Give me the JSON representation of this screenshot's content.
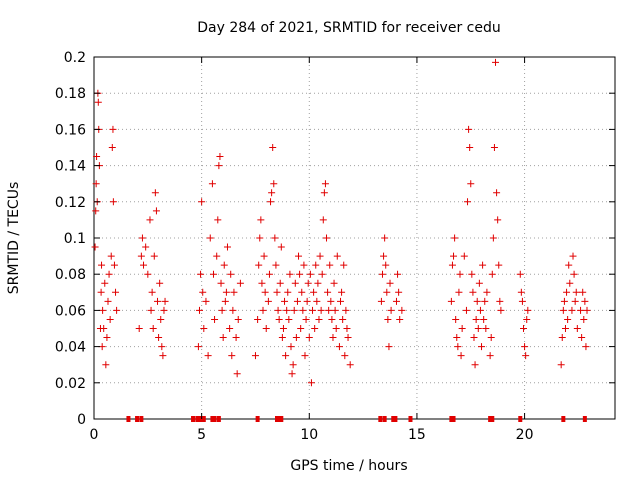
{
  "chart_data": {
    "type": "scatter",
    "title": "Day 284 of 2021, SRMTID for receiver cedu",
    "xlabel": "GPS time / hours",
    "ylabel": "SRMTID / TECUs",
    "xlim": [
      0,
      24.2
    ],
    "ylim": [
      0,
      0.2
    ],
    "xticks": [
      0,
      5,
      10,
      15,
      20
    ],
    "yticks": [
      0,
      0.02,
      0.04,
      0.06,
      0.08,
      0.1,
      0.12,
      0.14,
      0.16,
      0.18,
      0.2
    ],
    "grid": true,
    "marker": "+",
    "color": "#e00000",
    "series": [
      {
        "name": "SRMTID",
        "points": [
          [
            0.05,
            0.095
          ],
          [
            0.08,
            0.115
          ],
          [
            0.1,
            0.13
          ],
          [
            0.12,
            0.145
          ],
          [
            0.15,
            0.12
          ],
          [
            0.18,
            0.18
          ],
          [
            0.2,
            0.175
          ],
          [
            0.22,
            0.16
          ],
          [
            0.25,
            0.14
          ],
          [
            0.3,
            0.05
          ],
          [
            0.33,
            0.07
          ],
          [
            0.35,
            0.085
          ],
          [
            0.38,
            0.04
          ],
          [
            0.4,
            0.06
          ],
          [
            0.45,
            0.05
          ],
          [
            0.5,
            0.075
          ],
          [
            0.55,
            0.03
          ],
          [
            0.6,
            0.045
          ],
          [
            0.65,
            0.065
          ],
          [
            0.7,
            0.08
          ],
          [
            0.75,
            0.055
          ],
          [
            0.8,
            0.09
          ],
          [
            0.85,
            0.15
          ],
          [
            0.88,
            0.16
          ],
          [
            0.9,
            0.12
          ],
          [
            0.95,
            0.085
          ],
          [
            1.0,
            0.07
          ],
          [
            1.05,
            0.06
          ],
          [
            2.1,
            0.05
          ],
          [
            2.2,
            0.09
          ],
          [
            2.25,
            0.1
          ],
          [
            2.3,
            0.085
          ],
          [
            2.4,
            0.095
          ],
          [
            2.5,
            0.08
          ],
          [
            2.6,
            0.11
          ],
          [
            2.65,
            0.06
          ],
          [
            2.7,
            0.07
          ],
          [
            2.75,
            0.05
          ],
          [
            2.8,
            0.09
          ],
          [
            2.85,
            0.125
          ],
          [
            2.9,
            0.115
          ],
          [
            2.95,
            0.065
          ],
          [
            3.0,
            0.045
          ],
          [
            3.05,
            0.075
          ],
          [
            3.1,
            0.055
          ],
          [
            3.15,
            0.04
          ],
          [
            3.2,
            0.035
          ],
          [
            3.25,
            0.06
          ],
          [
            3.3,
            0.065
          ],
          [
            4.85,
            0.04
          ],
          [
            4.9,
            0.06
          ],
          [
            4.95,
            0.08
          ],
          [
            5.0,
            0.12
          ],
          [
            5.05,
            0.07
          ],
          [
            5.1,
            0.05
          ],
          [
            5.2,
            0.065
          ],
          [
            5.3,
            0.035
          ],
          [
            5.4,
            0.1
          ],
          [
            5.5,
            0.13
          ],
          [
            5.55,
            0.08
          ],
          [
            5.6,
            0.055
          ],
          [
            5.7,
            0.09
          ],
          [
            5.75,
            0.11
          ],
          [
            5.8,
            0.14
          ],
          [
            5.85,
            0.145
          ],
          [
            5.9,
            0.075
          ],
          [
            5.95,
            0.06
          ],
          [
            6.0,
            0.045
          ],
          [
            6.05,
            0.085
          ],
          [
            6.1,
            0.065
          ],
          [
            6.15,
            0.07
          ],
          [
            6.2,
            0.095
          ],
          [
            6.3,
            0.05
          ],
          [
            6.35,
            0.08
          ],
          [
            6.4,
            0.035
          ],
          [
            6.45,
            0.06
          ],
          [
            6.5,
            0.07
          ],
          [
            6.6,
            0.045
          ],
          [
            6.65,
            0.025
          ],
          [
            6.7,
            0.055
          ],
          [
            6.8,
            0.075
          ],
          [
            7.5,
            0.035
          ],
          [
            7.6,
            0.055
          ],
          [
            7.65,
            0.085
          ],
          [
            7.7,
            0.1
          ],
          [
            7.75,
            0.11
          ],
          [
            7.8,
            0.075
          ],
          [
            7.85,
            0.06
          ],
          [
            7.9,
            0.09
          ],
          [
            7.95,
            0.07
          ],
          [
            8.0,
            0.05
          ],
          [
            8.1,
            0.065
          ],
          [
            8.15,
            0.08
          ],
          [
            8.2,
            0.12
          ],
          [
            8.25,
            0.125
          ],
          [
            8.3,
            0.15
          ],
          [
            8.35,
            0.13
          ],
          [
            8.4,
            0.1
          ],
          [
            8.45,
            0.085
          ],
          [
            8.5,
            0.07
          ],
          [
            8.55,
            0.06
          ],
          [
            8.6,
            0.055
          ],
          [
            8.65,
            0.075
          ],
          [
            8.7,
            0.095
          ],
          [
            8.75,
            0.045
          ],
          [
            8.8,
            0.05
          ],
          [
            8.85,
            0.065
          ],
          [
            8.9,
            0.035
          ],
          [
            8.95,
            0.06
          ],
          [
            9.0,
            0.07
          ],
          [
            9.05,
            0.055
          ],
          [
            9.1,
            0.08
          ],
          [
            9.15,
            0.04
          ],
          [
            9.2,
            0.025
          ],
          [
            9.25,
            0.03
          ],
          [
            9.3,
            0.06
          ],
          [
            9.35,
            0.075
          ],
          [
            9.4,
            0.045
          ],
          [
            9.45,
            0.065
          ],
          [
            9.5,
            0.09
          ],
          [
            9.55,
            0.08
          ],
          [
            9.6,
            0.05
          ],
          [
            9.65,
            0.07
          ],
          [
            9.7,
            0.06
          ],
          [
            9.75,
            0.085
          ],
          [
            9.8,
            0.035
          ],
          [
            9.85,
            0.055
          ],
          [
            9.9,
            0.065
          ],
          [
            9.95,
            0.075
          ],
          [
            10.0,
            0.045
          ],
          [
            10.05,
            0.08
          ],
          [
            10.1,
            0.02
          ],
          [
            10.15,
            0.06
          ],
          [
            10.2,
            0.07
          ],
          [
            10.25,
            0.05
          ],
          [
            10.3,
            0.085
          ],
          [
            10.35,
            0.065
          ],
          [
            10.4,
            0.075
          ],
          [
            10.45,
            0.055
          ],
          [
            10.5,
            0.09
          ],
          [
            10.55,
            0.06
          ],
          [
            10.6,
            0.08
          ],
          [
            10.65,
            0.11
          ],
          [
            10.7,
            0.125
          ],
          [
            10.75,
            0.13
          ],
          [
            10.8,
            0.1
          ],
          [
            10.85,
            0.07
          ],
          [
            10.9,
            0.06
          ],
          [
            10.95,
            0.085
          ],
          [
            11.0,
            0.065
          ],
          [
            11.05,
            0.055
          ],
          [
            11.1,
            0.045
          ],
          [
            11.15,
            0.075
          ],
          [
            11.2,
            0.06
          ],
          [
            11.25,
            0.05
          ],
          [
            11.3,
            0.09
          ],
          [
            11.4,
            0.04
          ],
          [
            11.45,
            0.065
          ],
          [
            11.5,
            0.07
          ],
          [
            11.55,
            0.055
          ],
          [
            11.6,
            0.085
          ],
          [
            11.65,
            0.035
          ],
          [
            11.7,
            0.06
          ],
          [
            11.75,
            0.05
          ],
          [
            11.8,
            0.045
          ],
          [
            11.9,
            0.03
          ],
          [
            13.35,
            0.065
          ],
          [
            13.4,
            0.08
          ],
          [
            13.45,
            0.09
          ],
          [
            13.5,
            0.1
          ],
          [
            13.55,
            0.085
          ],
          [
            13.6,
            0.07
          ],
          [
            13.65,
            0.055
          ],
          [
            13.7,
            0.04
          ],
          [
            13.75,
            0.075
          ],
          [
            13.8,
            0.06
          ],
          [
            14.05,
            0.065
          ],
          [
            14.1,
            0.08
          ],
          [
            14.15,
            0.07
          ],
          [
            14.2,
            0.055
          ],
          [
            14.3,
            0.06
          ],
          [
            16.6,
            0.065
          ],
          [
            16.65,
            0.085
          ],
          [
            16.7,
            0.09
          ],
          [
            16.75,
            0.1
          ],
          [
            16.8,
            0.055
          ],
          [
            16.85,
            0.045
          ],
          [
            16.9,
            0.04
          ],
          [
            16.95,
            0.07
          ],
          [
            17.0,
            0.08
          ],
          [
            17.05,
            0.035
          ],
          [
            17.1,
            0.05
          ],
          [
            17.2,
            0.09
          ],
          [
            17.3,
            0.06
          ],
          [
            17.35,
            0.12
          ],
          [
            17.4,
            0.16
          ],
          [
            17.45,
            0.15
          ],
          [
            17.5,
            0.13
          ],
          [
            17.55,
            0.08
          ],
          [
            17.6,
            0.07
          ],
          [
            17.65,
            0.045
          ],
          [
            17.7,
            0.03
          ],
          [
            17.75,
            0.055
          ],
          [
            17.8,
            0.065
          ],
          [
            17.85,
            0.05
          ],
          [
            17.9,
            0.075
          ],
          [
            17.95,
            0.06
          ],
          [
            18.0,
            0.04
          ],
          [
            18.05,
            0.085
          ],
          [
            18.1,
            0.055
          ],
          [
            18.15,
            0.065
          ],
          [
            18.2,
            0.05
          ],
          [
            18.25,
            0.07
          ],
          [
            18.4,
            0.035
          ],
          [
            18.45,
            0.045
          ],
          [
            18.5,
            0.08
          ],
          [
            18.55,
            0.1
          ],
          [
            18.6,
            0.15
          ],
          [
            18.65,
            0.197
          ],
          [
            18.7,
            0.125
          ],
          [
            18.75,
            0.11
          ],
          [
            18.8,
            0.085
          ],
          [
            18.85,
            0.065
          ],
          [
            18.9,
            0.06
          ],
          [
            19.8,
            0.08
          ],
          [
            19.85,
            0.07
          ],
          [
            19.9,
            0.065
          ],
          [
            19.95,
            0.05
          ],
          [
            20.0,
            0.04
          ],
          [
            20.05,
            0.035
          ],
          [
            20.1,
            0.055
          ],
          [
            20.15,
            0.06
          ],
          [
            21.7,
            0.03
          ],
          [
            21.75,
            0.045
          ],
          [
            21.8,
            0.06
          ],
          [
            21.85,
            0.065
          ],
          [
            21.9,
            0.05
          ],
          [
            21.95,
            0.07
          ],
          [
            22.0,
            0.055
          ],
          [
            22.05,
            0.085
          ],
          [
            22.1,
            0.075
          ],
          [
            22.2,
            0.06
          ],
          [
            22.25,
            0.09
          ],
          [
            22.3,
            0.08
          ],
          [
            22.35,
            0.065
          ],
          [
            22.4,
            0.07
          ],
          [
            22.45,
            0.05
          ],
          [
            22.6,
            0.06
          ],
          [
            22.65,
            0.045
          ],
          [
            22.7,
            0.07
          ],
          [
            22.75,
            0.055
          ],
          [
            22.8,
            0.065
          ],
          [
            22.85,
            0.04
          ],
          [
            22.9,
            0.06
          ]
        ]
      }
    ],
    "gaps_at_zero": [
      1.6,
      2.0,
      2.2,
      4.6,
      4.8,
      4.9,
      5.0,
      5.1,
      5.5,
      5.6,
      5.8,
      7.6,
      8.5,
      8.6,
      8.7,
      13.3,
      13.5,
      13.9,
      14.0,
      14.7,
      16.6,
      16.7,
      18.4,
      18.5,
      19.8,
      21.8,
      22.8
    ]
  }
}
